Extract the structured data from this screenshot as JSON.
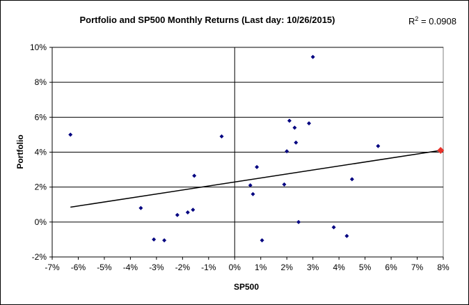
{
  "chart_data": {
    "type": "scatter",
    "title": "Portfolio and SP500 Monthly Returns (Last day: 10/26/2015)",
    "xlabel": "SP500",
    "ylabel": "Portfolio",
    "r2_label": "R",
    "r2_sup": "2",
    "r2_value": " = 0.0908",
    "xlim": [
      -7,
      8
    ],
    "ylim": [
      -2,
      10
    ],
    "x_ticks": [
      -7,
      -6,
      -5,
      -4,
      -3,
      -2,
      -1,
      0,
      1,
      2,
      3,
      4,
      5,
      6,
      7,
      8
    ],
    "x_tick_labels": [
      "-7%",
      "-6%",
      "-5%",
      "-4%",
      "-3%",
      "-2%",
      "-1%",
      "0%",
      "1%",
      "2%",
      "3%",
      "4%",
      "5%",
      "6%",
      "7%",
      "8%"
    ],
    "y_ticks": [
      -2,
      0,
      2,
      4,
      6,
      8,
      10
    ],
    "y_tick_labels": [
      "-2%",
      "0%",
      "2%",
      "4%",
      "6%",
      "8%",
      "10%"
    ],
    "grid": "horizontal",
    "marker_color": "#000080",
    "highlight_color": "#e8322a",
    "trendline": {
      "x": [
        -6.3,
        7.9
      ],
      "y": [
        0.85,
        4.1
      ]
    },
    "series": [
      {
        "points": [
          {
            "x": -6.3,
            "y": 5.0
          },
          {
            "x": -3.6,
            "y": 0.8
          },
          {
            "x": -3.1,
            "y": -1.0
          },
          {
            "x": -2.7,
            "y": -1.05
          },
          {
            "x": -2.2,
            "y": 0.4
          },
          {
            "x": -1.8,
            "y": 0.55
          },
          {
            "x": -1.6,
            "y": 0.7
          },
          {
            "x": -1.55,
            "y": 2.65
          },
          {
            "x": -0.5,
            "y": 4.9
          },
          {
            "x": 0.6,
            "y": 2.1
          },
          {
            "x": 0.7,
            "y": 1.6
          },
          {
            "x": 0.85,
            "y": 3.15
          },
          {
            "x": 1.05,
            "y": -1.05
          },
          {
            "x": 1.9,
            "y": 2.15
          },
          {
            "x": 2.0,
            "y": 4.05
          },
          {
            "x": 2.1,
            "y": 5.8
          },
          {
            "x": 2.3,
            "y": 5.4
          },
          {
            "x": 2.35,
            "y": 4.55
          },
          {
            "x": 2.45,
            "y": 0.0
          },
          {
            "x": 2.85,
            "y": 5.65
          },
          {
            "x": 3.0,
            "y": 9.45
          },
          {
            "x": 3.8,
            "y": -0.3
          },
          {
            "x": 4.3,
            "y": -0.8
          },
          {
            "x": 4.5,
            "y": 2.45
          },
          {
            "x": 5.5,
            "y": 4.35
          }
        ]
      }
    ],
    "highlight_point": {
      "x": 7.9,
      "y": 4.1
    }
  }
}
